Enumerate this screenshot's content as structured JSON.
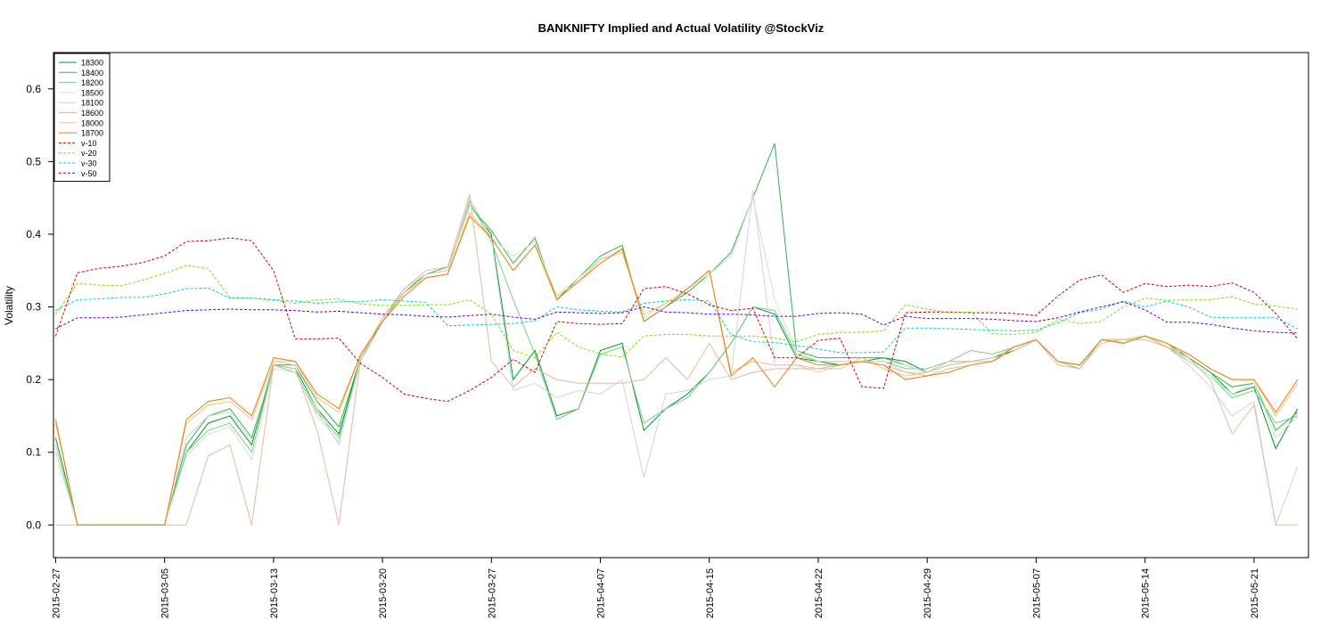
{
  "chart_data": {
    "type": "line",
    "title": "BANKNIFTY Implied and Actual Volatility @StockViz",
    "xlabel": "",
    "ylabel": "Volatility",
    "ylim": [
      -0.045,
      0.65
    ],
    "yticks": [
      0.0,
      0.1,
      0.2,
      0.3,
      0.4,
      0.5,
      0.6
    ],
    "ytick_labels": [
      "0.0",
      "0.1",
      "0.2",
      "0.3",
      "0.4",
      "0.5",
      "0.6"
    ],
    "grid": false,
    "legend_position": "top-left",
    "xlim": [
      -0.1,
      57.5
    ],
    "x_tick_labels": [
      {
        "i": 0,
        "label": "2015-02-27"
      },
      {
        "i": 5,
        "label": "2015-03-05"
      },
      {
        "i": 10,
        "label": "2015-03-13"
      },
      {
        "i": 15,
        "label": "2015-03-20"
      },
      {
        "i": 20,
        "label": "2015-03-27"
      },
      {
        "i": 25,
        "label": "2015-04-07"
      },
      {
        "i": 30,
        "label": "2015-04-15"
      },
      {
        "i": 35,
        "label": "2015-04-22"
      },
      {
        "i": 40,
        "label": "2015-04-29"
      },
      {
        "i": 45,
        "label": "2015-05-07"
      },
      {
        "i": 50,
        "label": "2015-05-14"
      },
      {
        "i": 55,
        "label": "2015-05-21"
      }
    ],
    "series": [
      {
        "name": "18300",
        "color": "#009a28",
        "dash": "solid",
        "values": [
          0.12,
          0.0,
          0.0,
          0.0,
          0.0,
          0.0,
          0.1,
          0.14,
          0.15,
          0.11,
          0.22,
          0.215,
          0.16,
          0.125,
          0.23,
          0.28,
          0.32,
          0.345,
          0.35,
          0.44,
          0.4,
          0.2,
          0.24,
          0.15,
          0.16,
          0.24,
          0.25,
          0.13,
          0.16,
          0.18,
          0.21,
          0.25,
          0.3,
          0.29,
          0.23,
          0.225,
          0.22,
          0.225,
          0.23,
          0.225,
          0.21,
          0.22,
          0.225,
          0.23,
          0.24,
          0.255,
          0.225,
          0.22,
          0.255,
          0.25,
          0.26,
          0.245,
          0.23,
          0.21,
          0.18,
          0.19,
          0.105,
          0.16
        ]
      },
      {
        "name": "18400",
        "color": "#33b04d",
        "dash": "solid",
        "values": [
          0.11,
          0.0,
          0.0,
          0.0,
          0.0,
          0.0,
          0.11,
          0.15,
          0.16,
          0.12,
          0.22,
          0.22,
          0.17,
          0.135,
          0.23,
          0.28,
          0.32,
          0.345,
          0.355,
          0.44,
          0.405,
          0.36,
          0.395,
          0.31,
          0.34,
          0.37,
          0.385,
          0.28,
          0.3,
          0.32,
          0.345,
          0.375,
          0.45,
          0.525,
          0.24,
          0.23,
          0.23,
          0.23,
          0.23,
          0.22,
          0.21,
          0.225,
          0.225,
          0.23,
          0.245,
          0.255,
          0.225,
          0.22,
          0.255,
          0.255,
          0.26,
          0.25,
          0.23,
          0.21,
          0.19,
          0.195,
          0.13,
          0.155
        ]
      },
      {
        "name": "18200",
        "color": "#7fcc87",
        "dash": "solid",
        "values": [
          0.1,
          0.0,
          0.0,
          0.0,
          0.0,
          0.0,
          0.1,
          0.13,
          0.14,
          0.1,
          0.22,
          0.21,
          0.155,
          0.12,
          0.225,
          0.28,
          0.325,
          0.345,
          0.35,
          0.445,
          0.39,
          0.31,
          0.235,
          0.145,
          0.16,
          0.235,
          0.245,
          0.14,
          0.16,
          0.175,
          0.21,
          0.25,
          0.3,
          0.295,
          0.235,
          0.225,
          0.225,
          0.225,
          0.225,
          0.215,
          0.215,
          0.225,
          0.24,
          0.235,
          0.245,
          0.255,
          0.225,
          0.215,
          0.255,
          0.25,
          0.26,
          0.245,
          0.225,
          0.205,
          0.175,
          0.185,
          0.14,
          0.15
        ]
      },
      {
        "name": "18500",
        "color": "#c8e6c8",
        "dash": "solid",
        "values": [
          0.1,
          0.0,
          0.0,
          0.0,
          0.0,
          0.0,
          0.095,
          0.125,
          0.135,
          0.09,
          0.215,
          0.21,
          0.15,
          0.115,
          0.225,
          0.285,
          0.325,
          0.345,
          0.35,
          0.44,
          0.395,
          0.37,
          0.39,
          0.315,
          0.34,
          0.365,
          0.38,
          0.285,
          0.305,
          0.325,
          0.345,
          0.37,
          0.45,
          0.31,
          0.24,
          0.225,
          0.225,
          0.225,
          0.225,
          0.22,
          0.21,
          0.22,
          0.225,
          0.23,
          0.245,
          0.255,
          0.225,
          0.22,
          0.255,
          0.255,
          0.26,
          0.25,
          0.225,
          0.205,
          0.18,
          0.195,
          0.12,
          0.15
        ]
      },
      {
        "name": "18100",
        "color": "#d3d3d3",
        "dash": "solid",
        "values": [
          0.11,
          0.0,
          0.0,
          0.0,
          0.0,
          0.0,
          0.12,
          0.15,
          0.155,
          0.115,
          0.225,
          0.22,
          0.16,
          0.11,
          0.23,
          0.285,
          0.325,
          0.345,
          0.35,
          0.45,
          0.395,
          0.185,
          0.195,
          0.175,
          0.185,
          0.18,
          0.2,
          0.065,
          0.18,
          0.185,
          0.2,
          0.205,
          0.46,
          0.22,
          0.22,
          0.21,
          0.22,
          0.225,
          0.225,
          0.21,
          0.21,
          0.225,
          0.225,
          0.23,
          0.245,
          0.255,
          0.225,
          0.22,
          0.255,
          0.255,
          0.255,
          0.245,
          0.22,
          0.19,
          0.15,
          0.17,
          0.0,
          0.08
        ]
      },
      {
        "name": "18600",
        "color": "#e8b89c",
        "dash": "solid",
        "values": [
          0.0,
          0.0,
          0.0,
          0.0,
          0.0,
          0.0,
          0.0,
          0.095,
          0.11,
          0.0,
          0.22,
          0.215,
          0.13,
          0.0,
          0.23,
          0.285,
          0.325,
          0.35,
          0.355,
          0.455,
          0.225,
          0.19,
          0.215,
          0.2,
          0.195,
          0.195,
          0.195,
          0.2,
          0.23,
          0.2,
          0.25,
          0.2,
          0.21,
          0.215,
          0.215,
          0.215,
          0.22,
          0.225,
          0.22,
          0.21,
          0.205,
          0.215,
          0.22,
          0.225,
          0.24,
          0.255,
          0.22,
          0.215,
          0.25,
          0.255,
          0.255,
          0.245,
          0.23,
          0.2,
          0.125,
          0.165,
          0.0,
          0.0
        ]
      },
      {
        "name": "18000",
        "color": "#f2c47a",
        "dash": "solid",
        "values": [
          0.14,
          0.0,
          0.0,
          0.0,
          0.0,
          0.0,
          0.14,
          0.165,
          0.17,
          0.145,
          0.225,
          0.225,
          0.175,
          0.155,
          0.235,
          0.28,
          0.32,
          0.34,
          0.345,
          0.43,
          0.395,
          0.35,
          0.385,
          0.315,
          0.335,
          0.365,
          0.375,
          0.29,
          0.305,
          0.325,
          0.35,
          0.21,
          0.225,
          0.22,
          0.22,
          0.215,
          0.215,
          0.23,
          0.215,
          0.205,
          0.21,
          0.22,
          0.225,
          0.225,
          0.245,
          0.255,
          0.225,
          0.22,
          0.255,
          0.255,
          0.26,
          0.245,
          0.235,
          0.215,
          0.2,
          0.2,
          0.15,
          0.195
        ]
      },
      {
        "name": "18700",
        "color": "#e87e12",
        "dash": "solid",
        "values": [
          0.145,
          0.0,
          0.0,
          0.0,
          0.0,
          0.0,
          0.145,
          0.17,
          0.175,
          0.15,
          0.23,
          0.225,
          0.18,
          0.16,
          0.235,
          0.28,
          0.315,
          0.34,
          0.345,
          0.425,
          0.395,
          0.35,
          0.385,
          0.31,
          0.335,
          0.36,
          0.38,
          0.28,
          0.3,
          0.325,
          0.35,
          0.205,
          0.23,
          0.19,
          0.23,
          0.22,
          0.22,
          0.225,
          0.22,
          0.2,
          0.205,
          0.21,
          0.22,
          0.225,
          0.245,
          0.255,
          0.225,
          0.22,
          0.255,
          0.25,
          0.26,
          0.25,
          0.235,
          0.215,
          0.2,
          0.2,
          0.155,
          0.2
        ]
      },
      {
        "name": "v-10",
        "color": "#cc0000",
        "dash": "dashed",
        "values": [
          0.26,
          0.347,
          0.353,
          0.356,
          0.361,
          0.37,
          0.39,
          0.391,
          0.395,
          0.391,
          0.35,
          0.256,
          0.256,
          0.257,
          0.222,
          0.203,
          0.18,
          0.174,
          0.17,
          0.185,
          0.203,
          0.228,
          0.21,
          0.28,
          0.277,
          0.276,
          0.277,
          0.325,
          0.328,
          0.318,
          0.303,
          0.295,
          0.298,
          0.23,
          0.23,
          0.254,
          0.257,
          0.19,
          0.188,
          0.292,
          0.293,
          0.293,
          0.292,
          0.292,
          0.291,
          0.288,
          0.315,
          0.337,
          0.344,
          0.32,
          0.332,
          0.328,
          0.33,
          0.328,
          0.333,
          0.32,
          0.291,
          0.256
        ]
      },
      {
        "name": "v-20",
        "color": "#7fe000",
        "dash": "dashed",
        "values": [
          0.29,
          0.332,
          0.33,
          0.329,
          0.337,
          0.346,
          0.357,
          0.353,
          0.313,
          0.312,
          0.309,
          0.305,
          0.31,
          0.311,
          0.304,
          0.302,
          0.302,
          0.303,
          0.303,
          0.31,
          0.29,
          0.24,
          0.23,
          0.265,
          0.245,
          0.235,
          0.231,
          0.26,
          0.262,
          0.262,
          0.26,
          0.26,
          0.26,
          0.257,
          0.252,
          0.262,
          0.265,
          0.265,
          0.267,
          0.303,
          0.297,
          0.292,
          0.293,
          0.263,
          0.262,
          0.265,
          0.283,
          0.277,
          0.28,
          0.3,
          0.312,
          0.309,
          0.31,
          0.31,
          0.314,
          0.304,
          0.301,
          0.297
        ]
      },
      {
        "name": "v-30",
        "color": "#00ccdd",
        "dash": "dashed",
        "values": [
          0.295,
          0.31,
          0.311,
          0.313,
          0.313,
          0.318,
          0.325,
          0.326,
          0.312,
          0.312,
          0.31,
          0.308,
          0.305,
          0.307,
          0.307,
          0.31,
          0.308,
          0.306,
          0.274,
          0.275,
          0.276,
          0.277,
          0.281,
          0.3,
          0.296,
          0.294,
          0.293,
          0.305,
          0.308,
          0.31,
          0.308,
          0.262,
          0.252,
          0.251,
          0.247,
          0.242,
          0.237,
          0.237,
          0.238,
          0.271,
          0.271,
          0.27,
          0.269,
          0.268,
          0.267,
          0.268,
          0.278,
          0.292,
          0.297,
          0.308,
          0.3,
          0.308,
          0.3,
          0.286,
          0.285,
          0.285,
          0.285,
          0.27
        ]
      },
      {
        "name": "v-50",
        "color": "#6600cc",
        "dash": "dashed",
        "values": [
          0.27,
          0.285,
          0.285,
          0.286,
          0.289,
          0.292,
          0.295,
          0.296,
          0.297,
          0.296,
          0.296,
          0.295,
          0.293,
          0.294,
          0.292,
          0.29,
          0.289,
          0.287,
          0.286,
          0.288,
          0.29,
          0.286,
          0.283,
          0.293,
          0.292,
          0.291,
          0.292,
          0.3,
          0.293,
          0.292,
          0.29,
          0.29,
          0.289,
          0.287,
          0.287,
          0.291,
          0.292,
          0.29,
          0.275,
          0.287,
          0.284,
          0.284,
          0.284,
          0.283,
          0.281,
          0.28,
          0.285,
          0.293,
          0.3,
          0.307,
          0.296,
          0.279,
          0.279,
          0.276,
          0.271,
          0.267,
          0.265,
          0.264
        ]
      }
    ]
  }
}
